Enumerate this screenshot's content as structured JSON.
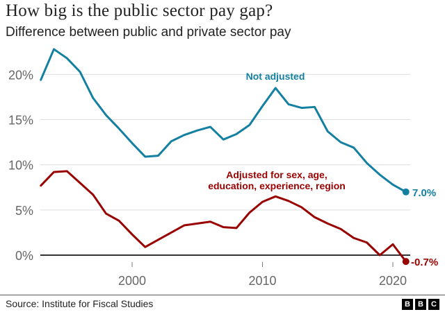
{
  "header": {
    "title": "How big is the public sector pay gap?",
    "subtitle": "Difference between public and private sector pay"
  },
  "footer": {
    "source": "Source: Institute for Fiscal Studies",
    "logo_letters": [
      "B",
      "B",
      "C"
    ]
  },
  "chart_data": {
    "type": "line",
    "title": "How big is the public sector pay gap?",
    "subtitle": "Difference between public and private sector pay",
    "xlabel": "",
    "ylabel": "",
    "x": [
      1993,
      1994,
      1995,
      1996,
      1997,
      1998,
      1999,
      2000,
      2001,
      2002,
      2003,
      2004,
      2005,
      2006,
      2007,
      2008,
      2009,
      2010,
      2011,
      2012,
      2013,
      2014,
      2015,
      2016,
      2017,
      2018,
      2019,
      2020,
      2021
    ],
    "xlim": [
      1993,
      2021
    ],
    "ylim": [
      -1,
      23
    ],
    "x_ticks": [
      2000,
      2010,
      2020
    ],
    "x_tick_labels": [
      "2000",
      "2010",
      "2020"
    ],
    "y_ticks": [
      0,
      5,
      10,
      15,
      20
    ],
    "y_tick_labels": [
      "0%",
      "5%",
      "10%",
      "15%",
      "20%"
    ],
    "grid": "horizontal",
    "legend": "direct labels",
    "series": [
      {
        "name": "Not adjusted",
        "color": "#1380a1",
        "values": [
          19.4,
          22.8,
          21.8,
          20.3,
          17.4,
          15.5,
          14.0,
          12.4,
          10.9,
          11.0,
          12.6,
          13.3,
          13.8,
          14.2,
          12.8,
          13.4,
          14.4,
          16.5,
          18.5,
          16.7,
          16.3,
          16.4,
          13.7,
          12.5,
          11.9,
          10.2,
          8.9,
          7.8,
          7.0
        ],
        "label_text": "Not adjusted",
        "end_label": "7.0%"
      },
      {
        "name": "Adjusted for sex, age, education, experience, region",
        "color": "#990000",
        "values": [
          7.7,
          9.2,
          9.3,
          8.0,
          6.7,
          4.6,
          3.8,
          2.3,
          0.9,
          1.7,
          2.5,
          3.3,
          3.5,
          3.7,
          3.1,
          3.0,
          4.7,
          5.9,
          6.5,
          6.0,
          5.3,
          4.2,
          3.5,
          2.9,
          1.9,
          1.4,
          0.0,
          1.2,
          -0.7
        ],
        "label_lines": [
          "Adjusted for sex, age,",
          "education, experience, region"
        ],
        "end_label": "-0.7%"
      }
    ]
  }
}
